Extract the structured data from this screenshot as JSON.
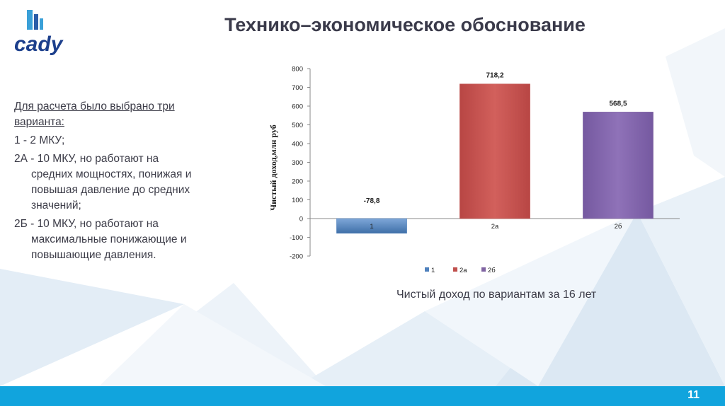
{
  "slide": {
    "title": "Технико–экономическое обоснование",
    "logo_text": "cady",
    "page_number": "11",
    "accent": "#11a4dd"
  },
  "text": {
    "intro": "Для расчета было выбрано три варианта:",
    "item1": "1  - 2 МКУ;",
    "item2a_head": "2А - 10 МКУ, но работают на",
    "item2a_rest": "средних мощностях, понижая и повышая давление до средних значений;",
    "item2b_head": "2Б - 10 МКУ, но работают на",
    "item2b_rest": "максимальные понижающие и повышающие давления."
  },
  "caption": "Чистый доход по вариантам за 16 лет",
  "chart_data": {
    "type": "bar",
    "categories": [
      "1",
      "2а",
      "2б"
    ],
    "values": [
      -78.8,
      718.2,
      568.5
    ],
    "data_labels": [
      "-78,8",
      "718,2",
      "568,5"
    ],
    "colors": [
      "#4f81bd",
      "#c0504d",
      "#8064a2"
    ],
    "ylabel": "Чистый доход,млн руб",
    "ylim": [
      -200,
      800
    ],
    "yticks": [
      "-200",
      "-100",
      "0",
      "100",
      "200",
      "300",
      "400",
      "500",
      "600",
      "700",
      "800"
    ],
    "legend": [
      "1",
      "2а",
      "2б"
    ],
    "legend_position": "bottom",
    "grid": false
  }
}
